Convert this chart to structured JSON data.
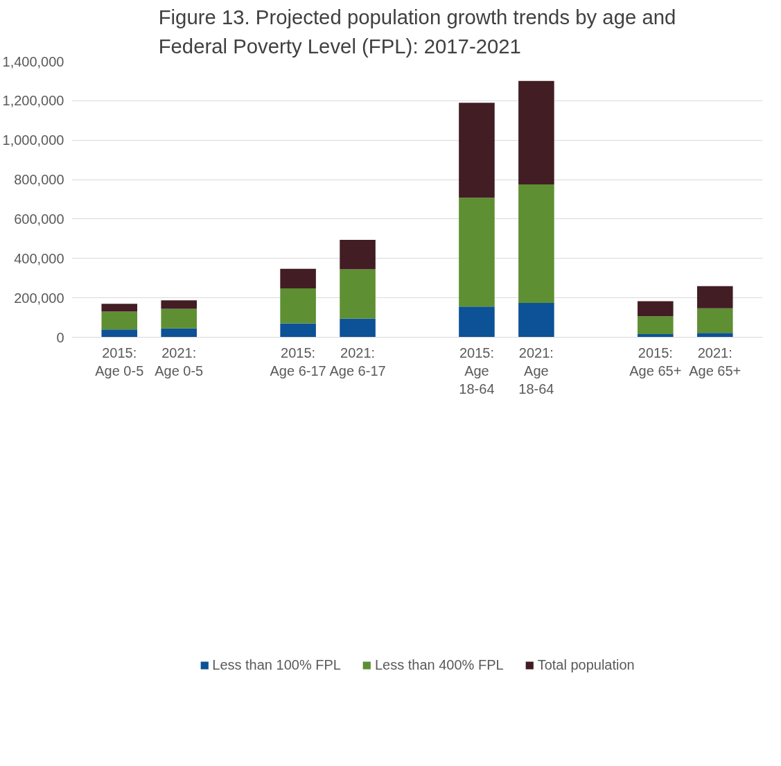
{
  "chart_data": {
    "type": "bar",
    "stacked": true,
    "title": "Figure 13. Projected population growth trends by age and Federal Poverty Level (FPL): 2017-2021",
    "categories": [
      "2015: Age 0-5",
      "2021: Age 0-5",
      null,
      "2015: Age 6-17",
      "2021: Age 6-17",
      null,
      "2015: Age 18-64",
      "2021: Age 18-64",
      null,
      "2015: Age 65+",
      "2021: Age 65+"
    ],
    "series": [
      {
        "name": "Less than 100% FPL",
        "color": "#0d5196",
        "values": [
          40000,
          45000,
          null,
          70000,
          95000,
          null,
          156000,
          174000,
          null,
          16000,
          22000
        ]
      },
      {
        "name": "Less than 400% FPL",
        "color": "#5e8f32",
        "values": [
          90000,
          99000,
          null,
          178000,
          250000,
          null,
          552000,
          602000,
          null,
          90000,
          125000
        ]
      },
      {
        "name": "Total population",
        "color": "#421d24",
        "values": [
          40000,
          43000,
          null,
          99000,
          149000,
          null,
          482000,
          525000,
          null,
          77000,
          112000
        ]
      }
    ],
    "ylim": [
      0,
      1400000
    ],
    "yticks": [
      {
        "value": 0,
        "label": "0"
      },
      {
        "value": 200000,
        "label": "200,000"
      },
      {
        "value": 400000,
        "label": "400,000"
      },
      {
        "value": 600000,
        "label": "600,000"
      },
      {
        "value": 800000,
        "label": "800,000"
      },
      {
        "value": 1000000,
        "label": "1,000,000"
      },
      {
        "value": 1200000,
        "label": "1,200,000"
      },
      {
        "value": 1400000,
        "label": "1,400,000"
      }
    ],
    "grid": "y",
    "legend": "bottom"
  }
}
